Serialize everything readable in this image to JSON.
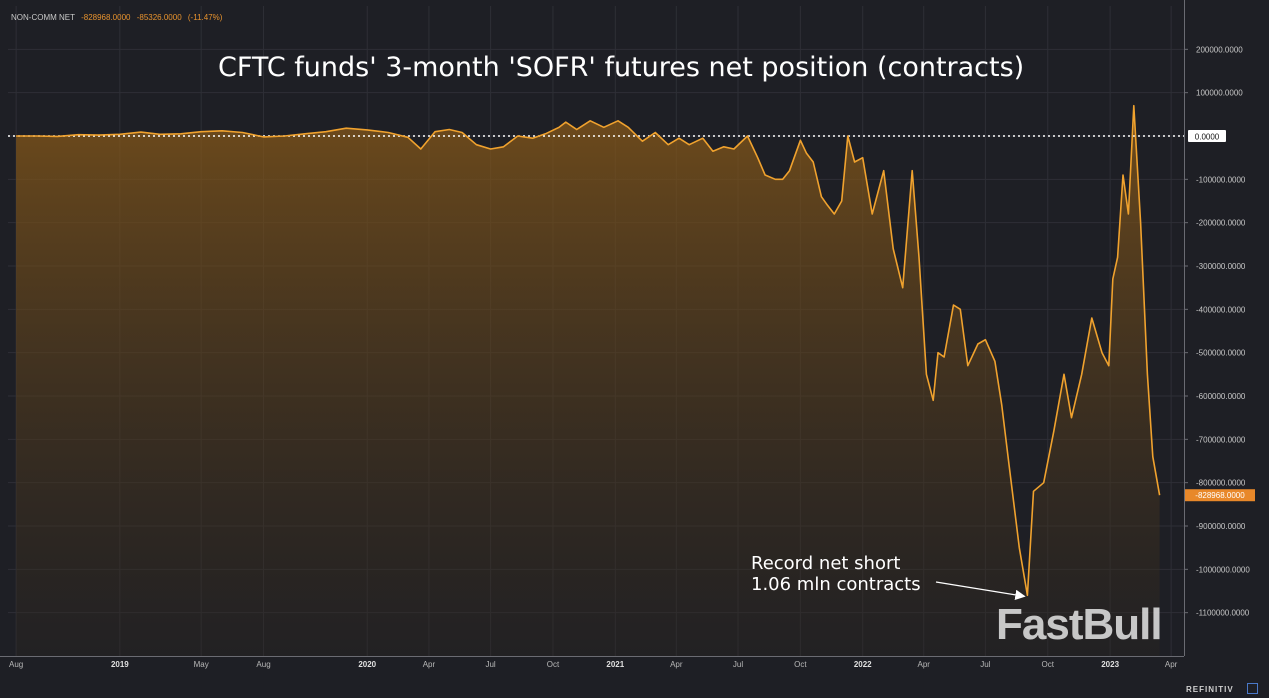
{
  "legend": {
    "series": "NON-COMM NET",
    "last": "-828968.0000",
    "change": "-85326.0000",
    "change_pct": "(-11.47%)"
  },
  "footer_text": "REFINITIV",
  "watermark": "FastBull",
  "annotation": {
    "line1": "Record net short",
    "line2": "1.06 mln contracts"
  },
  "colors": {
    "background": "#1e1f25",
    "line": "#f0a22e",
    "grid": "#2e2f36",
    "price_label_bg": "#e8882a"
  },
  "chart_data": {
    "type": "area",
    "title": "CFTC funds' 3-month 'SOFR' futures net position (contracts)",
    "series": [
      {
        "name": "NON-COMM NET",
        "points": [
          [
            "2018-08-01",
            0
          ],
          [
            "2018-09-01",
            0
          ],
          [
            "2018-10-01",
            -1000
          ],
          [
            "2018-11-01",
            3000
          ],
          [
            "2018-12-01",
            2000
          ],
          [
            "2019-01-01",
            4000
          ],
          [
            "2019-02-01",
            9000
          ],
          [
            "2019-03-01",
            4000
          ],
          [
            "2019-04-01",
            5000
          ],
          [
            "2019-05-01",
            10000
          ],
          [
            "2019-06-01",
            12000
          ],
          [
            "2019-07-01",
            8000
          ],
          [
            "2019-08-01",
            -2000
          ],
          [
            "2019-09-01",
            0
          ],
          [
            "2019-10-01",
            5000
          ],
          [
            "2019-11-01",
            10000
          ],
          [
            "2019-12-01",
            18000
          ],
          [
            "2020-01-01",
            14000
          ],
          [
            "2020-02-01",
            8000
          ],
          [
            "2020-03-01",
            -3000
          ],
          [
            "2020-03-20",
            -30000
          ],
          [
            "2020-04-10",
            10000
          ],
          [
            "2020-05-01",
            15000
          ],
          [
            "2020-05-20",
            8000
          ],
          [
            "2020-06-10",
            -20000
          ],
          [
            "2020-07-01",
            -30000
          ],
          [
            "2020-07-20",
            -25000
          ],
          [
            "2020-08-10",
            0
          ],
          [
            "2020-09-01",
            -5000
          ],
          [
            "2020-09-20",
            5000
          ],
          [
            "2020-10-10",
            20000
          ],
          [
            "2020-10-20",
            32000
          ],
          [
            "2020-11-05",
            15000
          ],
          [
            "2020-11-25",
            35000
          ],
          [
            "2020-12-15",
            20000
          ],
          [
            "2021-01-05",
            35000
          ],
          [
            "2021-01-20",
            20000
          ],
          [
            "2021-02-10",
            -12000
          ],
          [
            "2021-03-01",
            8000
          ],
          [
            "2021-03-20",
            -20000
          ],
          [
            "2021-04-05",
            -5000
          ],
          [
            "2021-04-20",
            -20000
          ],
          [
            "2021-05-10",
            -5000
          ],
          [
            "2021-05-25",
            -35000
          ],
          [
            "2021-06-10",
            -25000
          ],
          [
            "2021-06-25",
            -30000
          ],
          [
            "2021-07-15",
            0
          ],
          [
            "2021-07-30",
            -50000
          ],
          [
            "2021-08-10",
            -90000
          ],
          [
            "2021-08-25",
            -100000
          ],
          [
            "2021-09-05",
            -100000
          ],
          [
            "2021-09-15",
            -80000
          ],
          [
            "2021-10-01",
            -10000
          ],
          [
            "2021-10-10",
            -40000
          ],
          [
            "2021-10-20",
            -60000
          ],
          [
            "2021-11-01",
            -140000
          ],
          [
            "2021-11-10",
            -160000
          ],
          [
            "2021-11-20",
            -180000
          ],
          [
            "2021-12-01",
            -150000
          ],
          [
            "2021-12-10",
            0
          ],
          [
            "2021-12-20",
            -60000
          ],
          [
            "2022-01-01",
            -50000
          ],
          [
            "2022-01-15",
            -180000
          ],
          [
            "2022-02-01",
            -80000
          ],
          [
            "2022-02-15",
            -260000
          ],
          [
            "2022-03-01",
            -350000
          ],
          [
            "2022-03-15",
            -80000
          ],
          [
            "2022-03-25",
            -280000
          ],
          [
            "2022-04-05",
            -550000
          ],
          [
            "2022-04-15",
            -610000
          ],
          [
            "2022-04-22",
            -500000
          ],
          [
            "2022-05-01",
            -510000
          ],
          [
            "2022-05-15",
            -390000
          ],
          [
            "2022-05-25",
            -400000
          ],
          [
            "2022-06-05",
            -530000
          ],
          [
            "2022-06-20",
            -480000
          ],
          [
            "2022-07-01",
            -470000
          ],
          [
            "2022-07-15",
            -520000
          ],
          [
            "2022-07-25",
            -620000
          ],
          [
            "2022-08-05",
            -760000
          ],
          [
            "2022-08-20",
            -950000
          ],
          [
            "2022-09-01",
            -1060000
          ],
          [
            "2022-09-10",
            -820000
          ],
          [
            "2022-09-25",
            -800000
          ],
          [
            "2022-10-10",
            -680000
          ],
          [
            "2022-10-25",
            -550000
          ],
          [
            "2022-11-05",
            -650000
          ],
          [
            "2022-11-20",
            -550000
          ],
          [
            "2022-12-05",
            -420000
          ],
          [
            "2022-12-20",
            -500000
          ],
          [
            "2022-12-30",
            -530000
          ],
          [
            "2023-01-05",
            -330000
          ],
          [
            "2023-01-12",
            -280000
          ],
          [
            "2023-01-20",
            -90000
          ],
          [
            "2023-01-28",
            -180000
          ],
          [
            "2023-02-05",
            70000
          ],
          [
            "2023-02-15",
            -200000
          ],
          [
            "2023-02-25",
            -550000
          ],
          [
            "2023-03-05",
            -740000
          ],
          [
            "2023-03-15",
            -828968
          ]
        ]
      }
    ],
    "x_ticks": [
      {
        "date": "2018-08-01",
        "label": "Aug",
        "bold": false
      },
      {
        "date": "2019-01-01",
        "label": "2019",
        "bold": true
      },
      {
        "date": "2019-05-01",
        "label": "May",
        "bold": false
      },
      {
        "date": "2019-08-01",
        "label": "Aug",
        "bold": false
      },
      {
        "date": "2020-01-01",
        "label": "2020",
        "bold": true
      },
      {
        "date": "2020-04-01",
        "label": "Apr",
        "bold": false
      },
      {
        "date": "2020-07-01",
        "label": "Jul",
        "bold": false
      },
      {
        "date": "2020-10-01",
        "label": "Oct",
        "bold": false
      },
      {
        "date": "2021-01-01",
        "label": "2021",
        "bold": true
      },
      {
        "date": "2021-04-01",
        "label": "Apr",
        "bold": false
      },
      {
        "date": "2021-07-01",
        "label": "Jul",
        "bold": false
      },
      {
        "date": "2021-10-01",
        "label": "Oct",
        "bold": false
      },
      {
        "date": "2022-01-01",
        "label": "2022",
        "bold": true
      },
      {
        "date": "2022-04-01",
        "label": "Apr",
        "bold": false
      },
      {
        "date": "2022-07-01",
        "label": "Jul",
        "bold": false
      },
      {
        "date": "2022-10-01",
        "label": "Oct",
        "bold": false
      },
      {
        "date": "2023-01-01",
        "label": "2023",
        "bold": true
      },
      {
        "date": "2023-04-01",
        "label": "Apr",
        "bold": false
      }
    ],
    "y_ticks": [
      {
        "value": 200000,
        "label": "200000.0000"
      },
      {
        "value": 100000,
        "label": "100000.0000"
      },
      {
        "value": 0,
        "label": "0.0000"
      },
      {
        "value": -100000,
        "label": "-100000.0000"
      },
      {
        "value": -200000,
        "label": "-200000.0000"
      },
      {
        "value": -300000,
        "label": "-300000.0000"
      },
      {
        "value": -400000,
        "label": "-400000.0000"
      },
      {
        "value": -500000,
        "label": "-500000.0000"
      },
      {
        "value": -600000,
        "label": "-600000.0000"
      },
      {
        "value": -700000,
        "label": "-700000.0000"
      },
      {
        "value": -800000,
        "label": "-800000.0000"
      },
      {
        "value": -900000,
        "label": "-900000.0000"
      },
      {
        "value": -1000000,
        "label": "-1000000.0000"
      },
      {
        "value": -1100000,
        "label": "-1100000.0000"
      }
    ],
    "ylim": [
      -1200000,
      300000
    ],
    "xlim": [
      "2018-07-20",
      "2023-04-20"
    ],
    "reference_line": {
      "value": 0,
      "label": "0.0000",
      "style": "dotted"
    },
    "last_value_label": "-828968.0000",
    "annotation_point": [
      "2022-09-01",
      -1060000
    ],
    "grid": true
  }
}
